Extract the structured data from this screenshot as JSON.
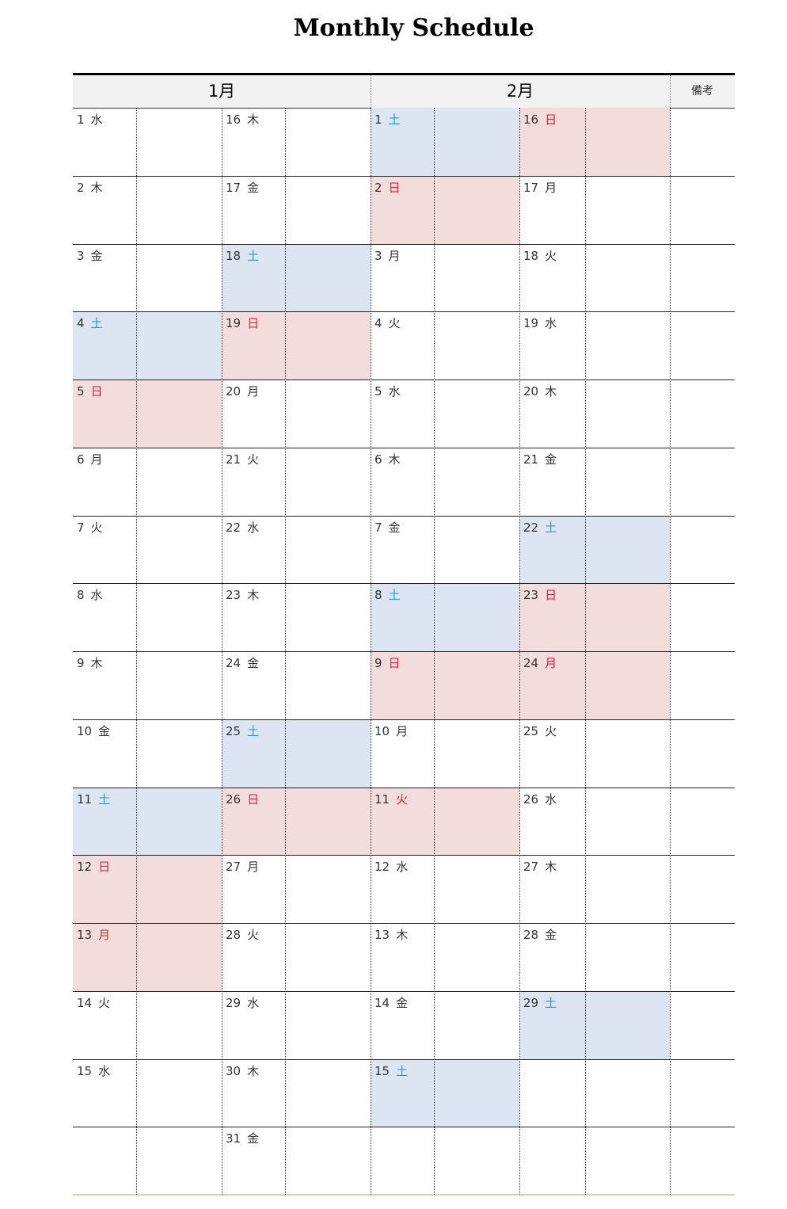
{
  "title": "Monthly Schedule",
  "header": {
    "month1": "1月",
    "month2": "2月",
    "notes": "備考"
  },
  "colors": {
    "saturday_fill": "#dce5f1",
    "sunday_fill": "#f2dcdc",
    "saturday_text": "#1e9edc",
    "holiday_text": "#e8212b"
  },
  "jan_col1": [
    {
      "day": "1",
      "wd": "水",
      "type": ""
    },
    {
      "day": "2",
      "wd": "木",
      "type": ""
    },
    {
      "day": "3",
      "wd": "金",
      "type": ""
    },
    {
      "day": "4",
      "wd": "土",
      "type": "sat"
    },
    {
      "day": "5",
      "wd": "日",
      "type": "sun"
    },
    {
      "day": "6",
      "wd": "月",
      "type": ""
    },
    {
      "day": "7",
      "wd": "火",
      "type": ""
    },
    {
      "day": "8",
      "wd": "水",
      "type": ""
    },
    {
      "day": "9",
      "wd": "木",
      "type": ""
    },
    {
      "day": "10",
      "wd": "金",
      "type": ""
    },
    {
      "day": "11",
      "wd": "土",
      "type": "sat"
    },
    {
      "day": "12",
      "wd": "日",
      "type": "sun"
    },
    {
      "day": "13",
      "wd": "月",
      "type": "sun"
    },
    {
      "day": "14",
      "wd": "火",
      "type": ""
    },
    {
      "day": "15",
      "wd": "水",
      "type": ""
    },
    null
  ],
  "jan_col2": [
    {
      "day": "16",
      "wd": "木",
      "type": ""
    },
    {
      "day": "17",
      "wd": "金",
      "type": ""
    },
    {
      "day": "18",
      "wd": "土",
      "type": "sat"
    },
    {
      "day": "19",
      "wd": "日",
      "type": "sun"
    },
    {
      "day": "20",
      "wd": "月",
      "type": ""
    },
    {
      "day": "21",
      "wd": "火",
      "type": ""
    },
    {
      "day": "22",
      "wd": "水",
      "type": ""
    },
    {
      "day": "23",
      "wd": "木",
      "type": ""
    },
    {
      "day": "24",
      "wd": "金",
      "type": ""
    },
    {
      "day": "25",
      "wd": "土",
      "type": "sat"
    },
    {
      "day": "26",
      "wd": "日",
      "type": "sun"
    },
    {
      "day": "27",
      "wd": "月",
      "type": ""
    },
    {
      "day": "28",
      "wd": "火",
      "type": ""
    },
    {
      "day": "29",
      "wd": "水",
      "type": ""
    },
    {
      "day": "30",
      "wd": "木",
      "type": ""
    },
    {
      "day": "31",
      "wd": "金",
      "type": ""
    }
  ],
  "feb_col1": [
    {
      "day": "1",
      "wd": "土",
      "type": "sat"
    },
    {
      "day": "2",
      "wd": "日",
      "type": "sun"
    },
    {
      "day": "3",
      "wd": "月",
      "type": ""
    },
    {
      "day": "4",
      "wd": "火",
      "type": ""
    },
    {
      "day": "5",
      "wd": "水",
      "type": ""
    },
    {
      "day": "6",
      "wd": "木",
      "type": ""
    },
    {
      "day": "7",
      "wd": "金",
      "type": ""
    },
    {
      "day": "8",
      "wd": "土",
      "type": "sat"
    },
    {
      "day": "9",
      "wd": "日",
      "type": "sun"
    },
    {
      "day": "10",
      "wd": "月",
      "type": ""
    },
    {
      "day": "11",
      "wd": "火",
      "type": "sun"
    },
    {
      "day": "12",
      "wd": "水",
      "type": ""
    },
    {
      "day": "13",
      "wd": "木",
      "type": ""
    },
    {
      "day": "14",
      "wd": "金",
      "type": ""
    },
    {
      "day": "15",
      "wd": "土",
      "type": "sat"
    },
    null
  ],
  "feb_col2": [
    {
      "day": "16",
      "wd": "日",
      "type": "sun"
    },
    {
      "day": "17",
      "wd": "月",
      "type": ""
    },
    {
      "day": "18",
      "wd": "火",
      "type": ""
    },
    {
      "day": "19",
      "wd": "水",
      "type": ""
    },
    {
      "day": "20",
      "wd": "木",
      "type": ""
    },
    {
      "day": "21",
      "wd": "金",
      "type": ""
    },
    {
      "day": "22",
      "wd": "土",
      "type": "sat"
    },
    {
      "day": "23",
      "wd": "日",
      "type": "sun"
    },
    {
      "day": "24",
      "wd": "月",
      "type": "sun"
    },
    {
      "day": "25",
      "wd": "火",
      "type": ""
    },
    {
      "day": "26",
      "wd": "水",
      "type": ""
    },
    {
      "day": "27",
      "wd": "木",
      "type": ""
    },
    {
      "day": "28",
      "wd": "金",
      "type": ""
    },
    {
      "day": "29",
      "wd": "土",
      "type": "sat"
    },
    null,
    null
  ]
}
